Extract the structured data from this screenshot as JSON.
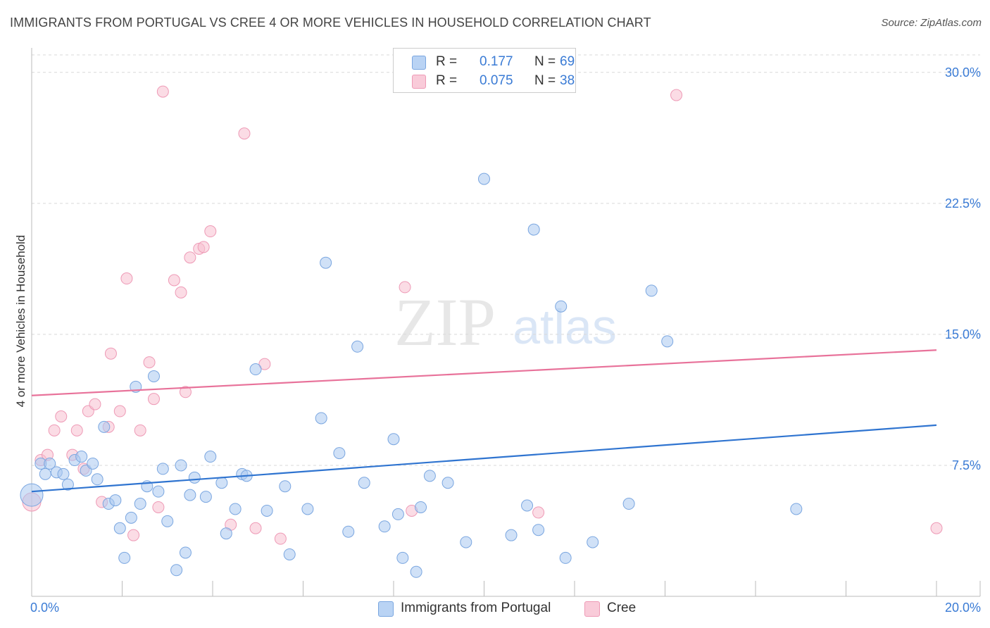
{
  "title": "IMMIGRANTS FROM PORTUGAL VS CREE 4 OR MORE VEHICLES IN HOUSEHOLD CORRELATION CHART",
  "source": "Source: ZipAtlas.com",
  "watermark": {
    "zip": "ZIP",
    "atlas": "atlas"
  },
  "legend_top": {
    "rows": [
      {
        "r_label": "R =",
        "r_value": "0.177",
        "n_label": "N =",
        "n_value": "69"
      },
      {
        "r_label": "R =",
        "r_value": "0.075",
        "n_label": "N =",
        "n_value": "38"
      }
    ]
  },
  "legend_bottom": {
    "items": [
      {
        "label": "Immigrants from Portugal"
      },
      {
        "label": "Cree"
      }
    ]
  },
  "colors": {
    "blue_fill": "#a9c8f0",
    "blue_stroke": "#7aa6e0",
    "blue_line": "#2f74d0",
    "pink_fill": "#f7bfd0",
    "pink_stroke": "#ee9ab6",
    "pink_line": "#e8729a",
    "axis_label": "#3a7bd5",
    "grid": "#d9d9d9"
  },
  "chart_data": {
    "type": "scatter",
    "title": "IMMIGRANTS FROM PORTUGAL VS CREE 4 OR MORE VEHICLES IN HOUSEHOLD CORRELATION CHART",
    "xlabel": "",
    "ylabel": "4 or more Vehicles in Household",
    "xlim": [
      0,
      20
    ],
    "ylim": [
      0,
      31
    ],
    "x_tick_labels": [
      "0.0%",
      "20.0%"
    ],
    "y_ticks": [
      7.5,
      15.0,
      22.5,
      30.0
    ],
    "y_tick_labels": [
      "7.5%",
      "15.0%",
      "22.5%",
      "30.0%"
    ],
    "grid": true,
    "legend_position": "top-center",
    "series": [
      {
        "name": "Immigrants from Portugal",
        "r": 0.177,
        "n": 69,
        "trend": {
          "x": [
            0,
            20
          ],
          "y": [
            6.0,
            9.8
          ]
        },
        "points": [
          [
            0.0,
            5.8
          ],
          [
            0.2,
            7.6
          ],
          [
            0.3,
            7.0
          ],
          [
            0.4,
            7.6
          ],
          [
            0.55,
            7.1
          ],
          [
            0.7,
            7.0
          ],
          [
            0.8,
            6.4
          ],
          [
            0.95,
            7.8
          ],
          [
            1.1,
            8.0
          ],
          [
            1.2,
            7.2
          ],
          [
            1.35,
            7.6
          ],
          [
            1.45,
            6.7
          ],
          [
            1.6,
            9.7
          ],
          [
            1.7,
            5.3
          ],
          [
            1.85,
            5.5
          ],
          [
            1.95,
            3.9
          ],
          [
            2.05,
            2.2
          ],
          [
            2.2,
            4.5
          ],
          [
            2.3,
            12.0
          ],
          [
            2.4,
            5.3
          ],
          [
            2.55,
            6.3
          ],
          [
            2.7,
            12.6
          ],
          [
            2.8,
            6.0
          ],
          [
            2.9,
            7.3
          ],
          [
            3.0,
            4.3
          ],
          [
            3.2,
            1.5
          ],
          [
            3.3,
            7.5
          ],
          [
            3.4,
            2.5
          ],
          [
            3.5,
            5.8
          ],
          [
            3.6,
            6.8
          ],
          [
            3.85,
            5.7
          ],
          [
            3.95,
            8.0
          ],
          [
            4.2,
            6.5
          ],
          [
            4.3,
            3.6
          ],
          [
            4.5,
            5.0
          ],
          [
            4.65,
            7.0
          ],
          [
            4.75,
            6.9
          ],
          [
            4.95,
            13.0
          ],
          [
            5.2,
            4.9
          ],
          [
            5.6,
            6.3
          ],
          [
            5.7,
            2.4
          ],
          [
            6.1,
            5.0
          ],
          [
            6.4,
            10.2
          ],
          [
            6.5,
            19.1
          ],
          [
            6.8,
            8.2
          ],
          [
            7.0,
            3.7
          ],
          [
            7.2,
            14.3
          ],
          [
            7.35,
            6.5
          ],
          [
            7.8,
            4.0
          ],
          [
            8.0,
            9.0
          ],
          [
            8.1,
            4.7
          ],
          [
            8.2,
            2.2
          ],
          [
            8.5,
            1.4
          ],
          [
            8.6,
            5.1
          ],
          [
            8.8,
            6.9
          ],
          [
            9.2,
            6.5
          ],
          [
            9.6,
            3.1
          ],
          [
            10.0,
            23.9
          ],
          [
            10.6,
            3.5
          ],
          [
            10.95,
            5.2
          ],
          [
            11.1,
            21.0
          ],
          [
            11.2,
            3.8
          ],
          [
            11.7,
            16.6
          ],
          [
            11.8,
            2.2
          ],
          [
            12.4,
            3.1
          ],
          [
            13.2,
            5.3
          ],
          [
            13.7,
            17.5
          ],
          [
            14.05,
            14.6
          ],
          [
            16.9,
            5.0
          ]
        ]
      },
      {
        "name": "Cree",
        "r": 0.075,
        "n": 38,
        "trend": {
          "x": [
            0,
            20
          ],
          "y": [
            11.5,
            14.1
          ]
        },
        "points": [
          [
            0.0,
            5.4
          ],
          [
            0.2,
            7.8
          ],
          [
            0.35,
            8.1
          ],
          [
            0.5,
            9.5
          ],
          [
            0.65,
            10.3
          ],
          [
            0.9,
            8.1
          ],
          [
            1.0,
            9.5
          ],
          [
            1.15,
            7.3
          ],
          [
            1.25,
            10.6
          ],
          [
            1.4,
            11.0
          ],
          [
            1.55,
            5.4
          ],
          [
            1.7,
            9.7
          ],
          [
            1.75,
            13.9
          ],
          [
            1.95,
            10.6
          ],
          [
            2.1,
            18.2
          ],
          [
            2.25,
            3.5
          ],
          [
            2.4,
            9.5
          ],
          [
            2.6,
            13.4
          ],
          [
            2.7,
            11.3
          ],
          [
            2.8,
            5.1
          ],
          [
            2.9,
            28.9
          ],
          [
            3.15,
            18.1
          ],
          [
            3.3,
            17.4
          ],
          [
            3.4,
            11.7
          ],
          [
            3.5,
            19.4
          ],
          [
            3.7,
            19.9
          ],
          [
            3.8,
            20.0
          ],
          [
            3.95,
            20.9
          ],
          [
            4.4,
            4.1
          ],
          [
            4.7,
            26.5
          ],
          [
            4.95,
            3.9
          ],
          [
            5.15,
            13.3
          ],
          [
            5.5,
            3.3
          ],
          [
            8.25,
            17.7
          ],
          [
            8.4,
            4.9
          ],
          [
            11.2,
            4.8
          ],
          [
            14.25,
            28.7
          ],
          [
            20.0,
            3.9
          ]
        ]
      }
    ]
  }
}
